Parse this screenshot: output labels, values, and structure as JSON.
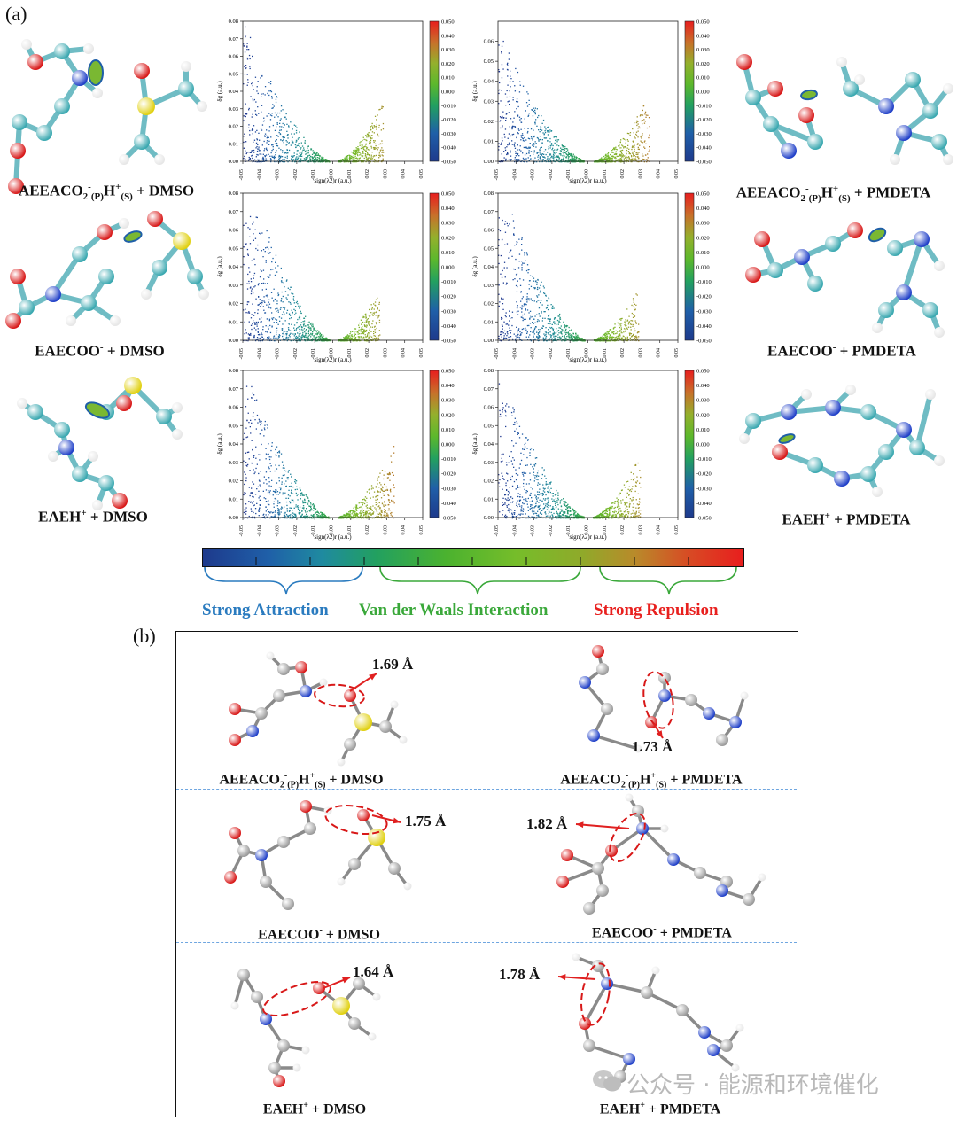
{
  "panel_a_letter": "(a)",
  "panel_b_letter": "(b)",
  "molecules_a": [
    {
      "main": "AEEACO",
      "sub1": "2",
      "sup1": "-",
      "sub2": "(P)",
      "mid": "H",
      "sup2": "+",
      "sub3": "(S)",
      "tail": " + DMSO"
    },
    {
      "main": "AEEACO",
      "sub1": "2",
      "sup1": "-",
      "sub2": "(P)",
      "mid": "H",
      "sup2": "+",
      "sub3": "(S)",
      "tail": " + PMDETA"
    },
    {
      "main": "EAECOO",
      "sup1": "-",
      "tail": " + DMSO"
    },
    {
      "main": "EAECOO",
      "sup1": "-",
      "tail": " + PMDETA"
    },
    {
      "main": "EAEH",
      "sup1": "+",
      "tail": " + DMSO"
    },
    {
      "main": "EAEH",
      "sup1": "+",
      "tail": " + PMDETA"
    }
  ],
  "legend": {
    "strong_attraction": "Strong Attraction",
    "vdw": "Van der Waals Interaction",
    "strong_repulsion": "Strong Repulsion",
    "attraction_color": "#2a7bbf",
    "vdw_color": "#3aa83a",
    "repulsion_color": "#e8201e"
  },
  "distances_b": [
    "1.69 Å",
    "1.73 Å",
    "1.75 Å",
    "1.82 Å",
    "1.64 Å",
    "1.78 Å"
  ],
  "captions_b": [
    {
      "main": "AEEACO",
      "sub1": "2",
      "sup1": "-",
      "sub2": "(P)",
      "mid": "H",
      "sup2": "+",
      "sub3": "(S)",
      "tail": " + DMSO"
    },
    {
      "main": "AEEACO",
      "sub1": "2",
      "sup1": "-",
      "sub2": "(P)",
      "mid": "H",
      "sup2": "+",
      "sub3": "(S)",
      "tail": " + PMDETA"
    },
    {
      "main": "EAECOO",
      "sup1": "-",
      "tail": " + DMSO"
    },
    {
      "main": "EAECOO",
      "sup1": "-",
      "tail": " + PMDETA"
    },
    {
      "main": "EAEH",
      "sup1": "+",
      "tail": " + DMSO"
    },
    {
      "main": "EAEH",
      "sup1": "+",
      "tail": " + PMDETA"
    }
  ],
  "watermark": "公众号 · 能源和环境催化",
  "chart_data": [
    {
      "type": "scatter",
      "title": "",
      "xlabel": "sign(λ2)r (a.u.)",
      "ylabel": "δg (a.u.)",
      "xlim": [
        -0.05,
        0.05
      ],
      "ylim": [
        0,
        0.08
      ],
      "xticks": [
        "-0.05",
        "-0.04",
        "-0.03",
        "-0.02",
        "-0.01",
        "0.00",
        "0.01",
        "0.02",
        "0.03",
        "0.04",
        "0.05"
      ],
      "yticks": [
        "0.00",
        "0.01",
        "0.02",
        "0.03",
        "0.04",
        "0.05",
        "0.06",
        "0.07",
        "0.08"
      ],
      "colorbar_ticks": [
        "0.050",
        "0.040",
        "0.030",
        "0.020",
        "0.010",
        "0.000",
        "-0.010",
        "-0.020",
        "-0.030",
        "-0.040",
        "-0.050"
      ],
      "left_peak": {
        "x": -0.048,
        "y": 0.078
      },
      "right_peak": {
        "x": 0.028,
        "y": 0.036
      }
    },
    {
      "type": "scatter",
      "title": "",
      "xlabel": "sign(λ2)r (a.u.)",
      "ylabel": "δg (a.u.)",
      "xlim": [
        -0.05,
        0.05
      ],
      "ylim": [
        0,
        0.07
      ],
      "xticks": [
        "-0.05",
        "-0.04",
        "-0.03",
        "-0.02",
        "-0.01",
        "0.00",
        "0.01",
        "0.02",
        "0.03",
        "0.04",
        "0.05"
      ],
      "yticks": [
        "0.00",
        "0.01",
        "0.02",
        "0.03",
        "0.04",
        "0.05",
        "0.06"
      ],
      "colorbar_ticks": [
        "0.050",
        "0.040",
        "0.030",
        "0.020",
        "0.010",
        "0.000",
        "-0.010",
        "-0.020",
        "-0.030",
        "-0.040",
        "-0.050"
      ],
      "left_peak": {
        "x": -0.048,
        "y": 0.062
      },
      "right_peak": {
        "x": 0.034,
        "y": 0.035
      }
    },
    {
      "type": "scatter",
      "title": "",
      "xlabel": "sign(λ2)r (a.u.)",
      "ylabel": "δg (a.u.)",
      "xlim": [
        -0.05,
        0.05
      ],
      "ylim": [
        0,
        0.08
      ],
      "xticks": [
        "-0.05",
        "-0.04",
        "-0.03",
        "-0.02",
        "-0.01",
        "0.00",
        "0.01",
        "0.02",
        "0.03",
        "0.04",
        "0.05"
      ],
      "yticks": [
        "0.00",
        "0.01",
        "0.02",
        "0.03",
        "0.04",
        "0.05",
        "0.06",
        "0.07",
        "0.08"
      ],
      "colorbar_ticks": [
        "0.050",
        "0.040",
        "0.030",
        "0.020",
        "0.010",
        "0.000",
        "-0.010",
        "-0.020",
        "-0.030",
        "-0.040",
        "-0.050"
      ],
      "left_peak": {
        "x": -0.04,
        "y": 0.068
      },
      "right_peak": {
        "x": 0.026,
        "y": 0.029
      }
    },
    {
      "type": "scatter",
      "title": "",
      "xlabel": "sign(λ2)r (a.u.)",
      "ylabel": "δg (a.u.)",
      "xlim": [
        -0.05,
        0.05
      ],
      "ylim": [
        0,
        0.08
      ],
      "xticks": [
        "-0.05",
        "-0.04",
        "-0.03",
        "-0.02",
        "-0.01",
        "0.00",
        "0.01",
        "0.02",
        "0.03",
        "0.04",
        "0.05"
      ],
      "yticks": [
        "0.00",
        "0.01",
        "0.02",
        "0.03",
        "0.04",
        "0.05",
        "0.06",
        "0.07",
        "0.08"
      ],
      "colorbar_ticks": [
        "0.050",
        "0.040",
        "0.030",
        "0.020",
        "0.010",
        "0.000",
        "-0.010",
        "-0.020",
        "-0.030",
        "-0.040",
        "-0.050"
      ],
      "left_peak": {
        "x": -0.042,
        "y": 0.07
      },
      "right_peak": {
        "x": 0.028,
        "y": 0.029
      }
    },
    {
      "type": "scatter",
      "title": "",
      "xlabel": "sign(λ2)r (a.u.)",
      "ylabel": "δg (a.u.)",
      "xlim": [
        -0.05,
        0.05
      ],
      "ylim": [
        0,
        0.08
      ],
      "xticks": [
        "-0.05",
        "-0.04",
        "-0.03",
        "-0.02",
        "-0.01",
        "0.00",
        "0.01",
        "0.02",
        "0.03",
        "0.04",
        "0.05"
      ],
      "yticks": [
        "0.00",
        "0.01",
        "0.02",
        "0.03",
        "0.04",
        "0.05",
        "0.06",
        "0.07",
        "0.08"
      ],
      "colorbar_ticks": [
        "0.050",
        "0.040",
        "0.030",
        "0.020",
        "0.010",
        "0.000",
        "-0.010",
        "-0.020",
        "-0.030",
        "-0.040",
        "-0.050"
      ],
      "left_peak": {
        "x": -0.048,
        "y": 0.079
      },
      "right_peak": {
        "x": 0.034,
        "y": 0.042
      }
    },
    {
      "type": "scatter",
      "title": "",
      "xlabel": "sign(λ2)r (a.u.)",
      "ylabel": "δg (a.u.)",
      "xlim": [
        -0.05,
        0.05
      ],
      "ylim": [
        0,
        0.08
      ],
      "xticks": [
        "-0.05",
        "-0.04",
        "-0.03",
        "-0.02",
        "-0.01",
        "0.00",
        "0.01",
        "0.02",
        "0.03",
        "0.04",
        "0.05"
      ],
      "yticks": [
        "0.00",
        "0.01",
        "0.02",
        "0.03",
        "0.04",
        "0.05",
        "0.06",
        "0.07",
        "0.08"
      ],
      "colorbar_ticks": [
        "0.050",
        "0.040",
        "0.030",
        "0.020",
        "0.010",
        "0.000",
        "-0.010",
        "-0.020",
        "-0.030",
        "-0.040",
        "-0.050"
      ],
      "left_peak": {
        "x": -0.047,
        "y": 0.075
      },
      "right_peak": {
        "x": 0.029,
        "y": 0.036
      }
    }
  ]
}
